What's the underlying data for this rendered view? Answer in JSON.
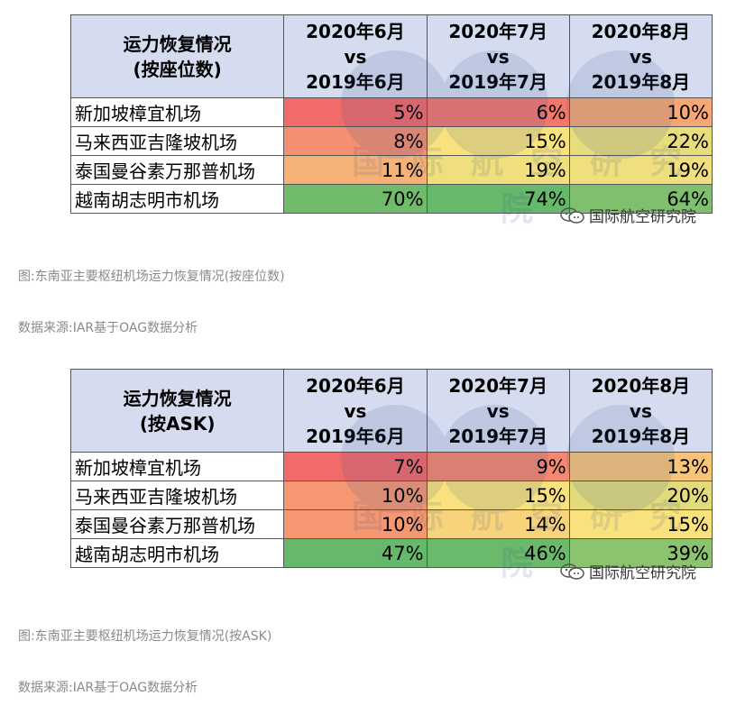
{
  "chart_data": [
    {
      "type": "table",
      "header": {
        "row_label": [
          "运力恢复情况",
          "(按座位数)"
        ],
        "columns": [
          [
            "2020年6月",
            "vs",
            "2019年6月"
          ],
          [
            "2020年7月",
            "vs",
            "2019年7月"
          ],
          [
            "2020年8月",
            "vs",
            "2019年8月"
          ]
        ]
      },
      "rows": [
        {
          "airport": "新加坡樟宜机场",
          "values": [
            5,
            6,
            10
          ],
          "labels": [
            "5%",
            "6%",
            "10%"
          ]
        },
        {
          "airport": "马来西亚吉隆坡机场",
          "values": [
            8,
            15,
            22
          ],
          "labels": [
            "8%",
            "15%",
            "22%"
          ]
        },
        {
          "airport": "泰国曼谷素万那普机场",
          "values": [
            11,
            19,
            19
          ],
          "labels": [
            "11%",
            "19%",
            "19%"
          ]
        },
        {
          "airport": "越南胡志明市机场",
          "values": [
            70,
            74,
            64
          ],
          "labels": [
            "70%",
            "74%",
            "64%"
          ]
        }
      ],
      "caption": "图:东南亚主要枢纽机场运力恢复情况(按座位数)",
      "source": "数据来源:IAR基于OAG数据分析"
    },
    {
      "type": "table",
      "header": {
        "row_label": [
          "运力恢复情况",
          "(按ASK)"
        ],
        "columns": [
          [
            "2020年6月",
            "vs",
            "2019年6月"
          ],
          [
            "2020年7月",
            "vs",
            "2019年7月"
          ],
          [
            "2020年8月",
            "vs",
            "2019年8月"
          ]
        ]
      },
      "rows": [
        {
          "airport": "新加坡樟宜机场",
          "values": [
            7,
            9,
            13
          ],
          "labels": [
            "7%",
            "9%",
            "13%"
          ]
        },
        {
          "airport": "马来西亚吉隆坡机场",
          "values": [
            10,
            15,
            20
          ],
          "labels": [
            "10%",
            "15%",
            "20%"
          ]
        },
        {
          "airport": "泰国曼谷素万那普机场",
          "values": [
            10,
            14,
            15
          ],
          "labels": [
            "10%",
            "14%",
            "15%"
          ]
        },
        {
          "airport": "越南胡志明市机场",
          "values": [
            47,
            46,
            39
          ],
          "labels": [
            "47%",
            "46%",
            "39%"
          ]
        }
      ],
      "caption": "图:东南亚主要枢纽机场运力恢复情况(按ASK)",
      "source": "数据来源:IAR基于OAG数据分析"
    }
  ],
  "watermark": {
    "text": "国际航空研究院",
    "wechat_label": "国际航空研究院",
    "wechat_icon": "wechat-icon"
  },
  "colors": {
    "header_bg": "#d5dcef",
    "scale_low": "#f26b6b",
    "scale_mid": "#f9e27e",
    "scale_high": "#66b86a"
  }
}
